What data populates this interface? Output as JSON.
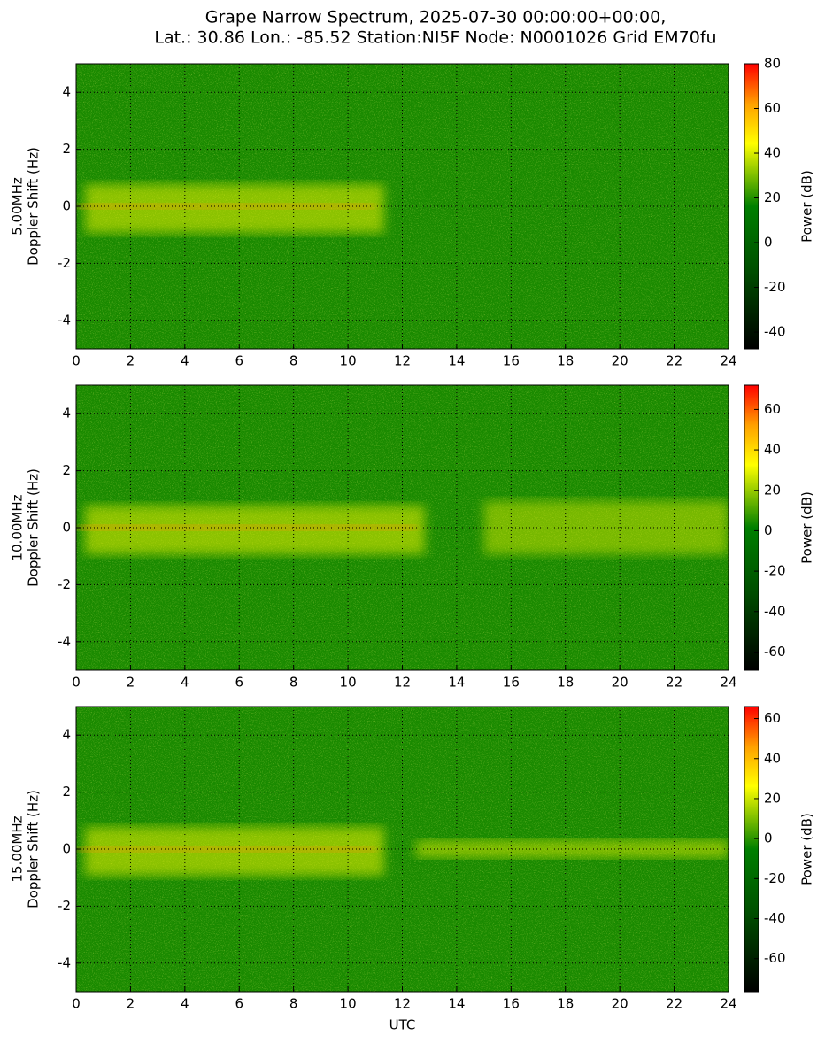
{
  "title": [
    "Grape Narrow Spectrum, 2025-07-30 00:00:00+00:00,",
    "Lat.: 30.86 Lon.: -85.52 Station:NI5F Node: N0001026 Grid EM70fu"
  ],
  "chart_data": [
    {
      "type": "heatmap",
      "ylabel": [
        "5.00MHz",
        "Doppler Shift (Hz)"
      ],
      "xlim": [
        0,
        24
      ],
      "xticks": [
        0,
        2,
        4,
        6,
        8,
        10,
        12,
        14,
        16,
        18,
        20,
        22,
        24
      ],
      "ylim": [
        -5,
        5
      ],
      "yticks": [
        -4,
        -2,
        0,
        2,
        4
      ],
      "grid": true,
      "colorbar": {
        "label": "Power (dB)",
        "clim": [
          -47.5,
          80
        ],
        "ticks": [
          -40,
          -20,
          0,
          20,
          40,
          60,
          80
        ]
      }
    },
    {
      "type": "heatmap",
      "ylabel": [
        "10.00MHz",
        "Doppler Shift (Hz)"
      ],
      "xlim": [
        0,
        24
      ],
      "xticks": [
        0,
        2,
        4,
        6,
        8,
        10,
        12,
        14,
        16,
        18,
        20,
        22,
        24
      ],
      "ylim": [
        -5,
        5
      ],
      "yticks": [
        -4,
        -2,
        0,
        2,
        4
      ],
      "grid": true,
      "colorbar": {
        "label": "Power (dB)",
        "clim": [
          -69,
          72
        ],
        "ticks": [
          -60,
          -40,
          -20,
          0,
          20,
          40,
          60
        ]
      }
    },
    {
      "type": "heatmap",
      "ylabel": [
        "15.00MHz",
        "Doppler Shift (Hz)"
      ],
      "xlabel": "UTC",
      "xlim": [
        0,
        24
      ],
      "xticks": [
        0,
        2,
        4,
        6,
        8,
        10,
        12,
        14,
        16,
        18,
        20,
        22,
        24
      ],
      "ylim": [
        -5,
        5
      ],
      "yticks": [
        -4,
        -2,
        0,
        2,
        4
      ],
      "grid": true,
      "colorbar": {
        "label": "Power (dB)",
        "clim": [
          -76.5,
          66
        ],
        "ticks": [
          -60,
          -40,
          -20,
          0,
          20,
          40,
          60
        ]
      }
    }
  ]
}
